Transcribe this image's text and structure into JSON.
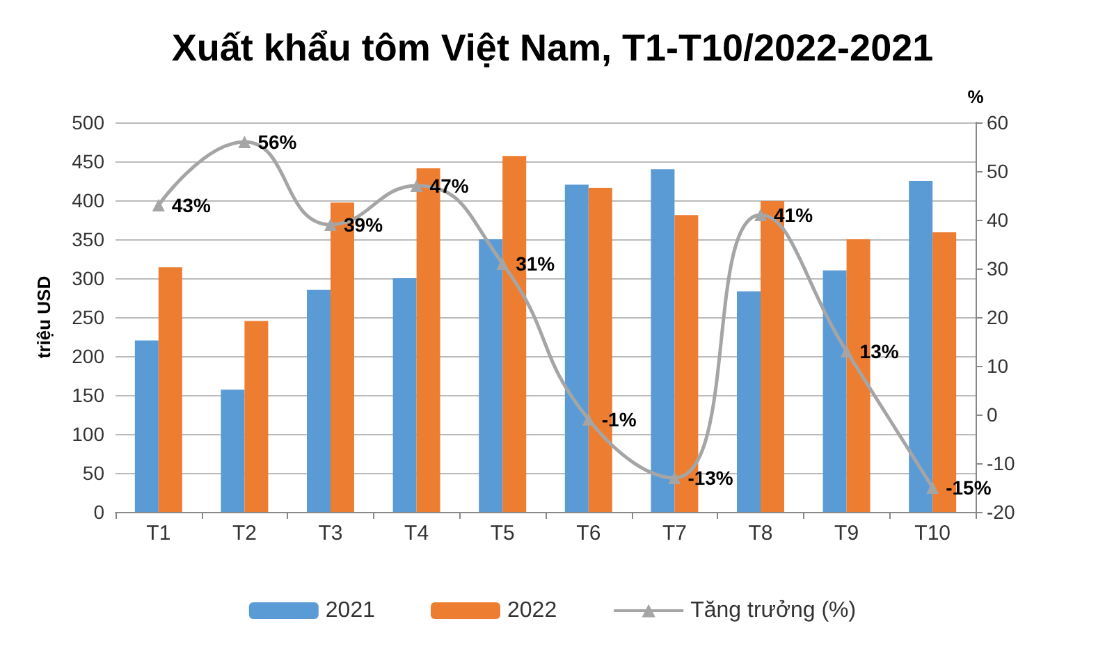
{
  "chart_data": {
    "type": "bar",
    "title": "Xuất khẩu tôm Việt Nam, T1-T10/2022-2021",
    "ylabel": "triệu USD",
    "y2label": "%",
    "categories": [
      "T1",
      "T2",
      "T3",
      "T4",
      "T5",
      "T6",
      "T7",
      "T8",
      "T9",
      "T10"
    ],
    "series": [
      {
        "name": "2021",
        "color": "#5b9bd5",
        "values": [
          220,
          157,
          285,
          300,
          350,
          420,
          440,
          283,
          310,
          425
        ]
      },
      {
        "name": "2022",
        "color": "#ed7d31",
        "values": [
          314,
          245,
          397,
          441,
          457,
          416,
          381,
          399,
          350,
          359
        ]
      },
      {
        "name": "Tăng trưởng (%)",
        "type": "line",
        "axis": "y2",
        "color": "#a5a5a5",
        "marker": "triangle",
        "values": [
          43,
          56,
          39,
          47,
          31,
          -1,
          -13,
          41,
          13,
          -15
        ],
        "value_labels": [
          "43%",
          "56%",
          "39%",
          "47%",
          "31%",
          "-1%",
          "-13%",
          "41%",
          "13%",
          "-15%"
        ]
      }
    ],
    "ylim": [
      0,
      500
    ],
    "yticks": [
      0,
      50,
      100,
      150,
      200,
      250,
      300,
      350,
      400,
      450,
      500
    ],
    "y2lim": [
      -20,
      60
    ],
    "y2ticks": [
      -20,
      -10,
      0,
      10,
      20,
      30,
      40,
      50,
      60
    ],
    "grid": "y",
    "legend": "bottom"
  }
}
